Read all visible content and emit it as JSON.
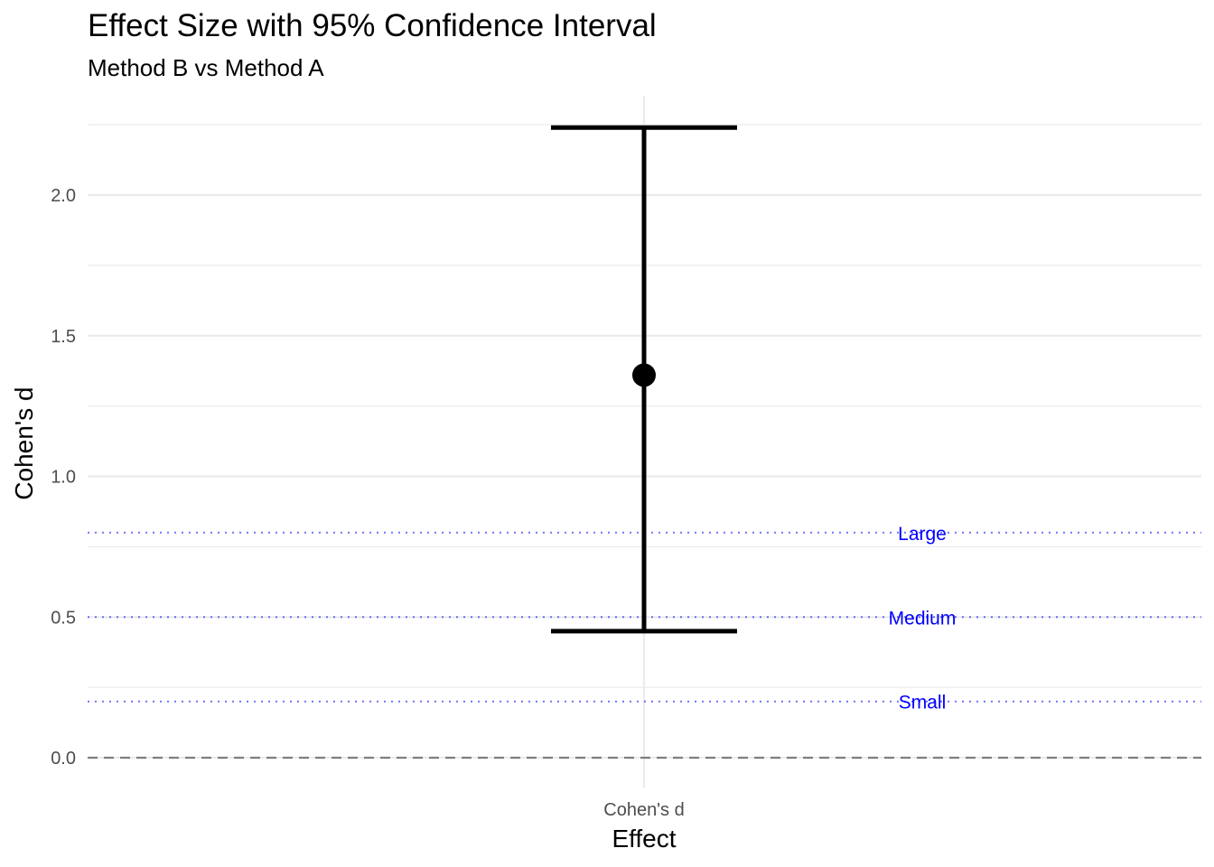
{
  "chart_data": {
    "type": "errorbar",
    "title": "Effect Size with 95% Confidence Interval",
    "subtitle": "Method B vs Method A",
    "xlabel": "Effect",
    "ylabel": "Cohen's d",
    "categories": [
      "Cohen's d"
    ],
    "estimate": 1.36,
    "ci_lower": 0.45,
    "ci_upper": 2.24,
    "ylim": [
      -0.1,
      2.35
    ],
    "yticks": [
      0.0,
      0.5,
      1.0,
      1.5,
      2.0
    ],
    "ytick_labels": [
      "0.0",
      "0.5",
      "1.0",
      "1.5",
      "2.0"
    ],
    "grid": true,
    "zero_line": {
      "value": 0.0,
      "style": "dashed",
      "color": "#7f7f7f"
    },
    "reference_lines": [
      {
        "value": 0.8,
        "label": "Large"
      },
      {
        "value": 0.5,
        "label": "Medium"
      },
      {
        "value": 0.2,
        "label": "Small"
      }
    ],
    "reference_color": "#0000ff",
    "point_color": "#000000",
    "grid_color": "#ebebeb"
  }
}
